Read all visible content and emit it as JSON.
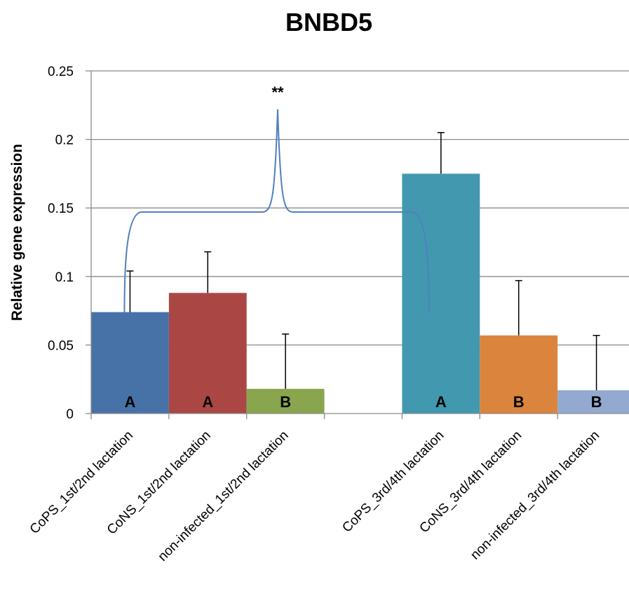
{
  "chart_data": {
    "type": "bar",
    "title": "BNBD5",
    "ylabel": "Relative gene expression",
    "xlabel": "",
    "ylim": [
      0,
      0.25
    ],
    "yticks": [
      "0",
      "0.05",
      "0.1",
      "0.15",
      "0.2",
      "0.25"
    ],
    "ytick_values": [
      0,
      0.05,
      0.1,
      0.15,
      0.2,
      0.25
    ],
    "grid": true,
    "categories": [
      "CoPS_1st/2nd lactation",
      "CoNS_1st/2nd lactation",
      "non-infected_1st/2nd lactation",
      "",
      "CoPS_3rd/4th lactation",
      "CoNS_3rd/4th lactation",
      "non-infected_3rd/4th lactation"
    ],
    "values": [
      0.074,
      0.088,
      0.018,
      null,
      0.175,
      0.057,
      0.017
    ],
    "error_upper": [
      0.104,
      0.118,
      0.058,
      null,
      0.205,
      0.097,
      0.057
    ],
    "group_letters": [
      "A",
      "A",
      "B",
      "",
      "A",
      "B",
      "B"
    ],
    "colors": [
      "#4672A8",
      "#AA4744",
      "#89A54E",
      "",
      "#4198AF",
      "#DB843D",
      "#93A9CF"
    ],
    "bracket_color": "#4F81BD",
    "annotation": "**"
  }
}
